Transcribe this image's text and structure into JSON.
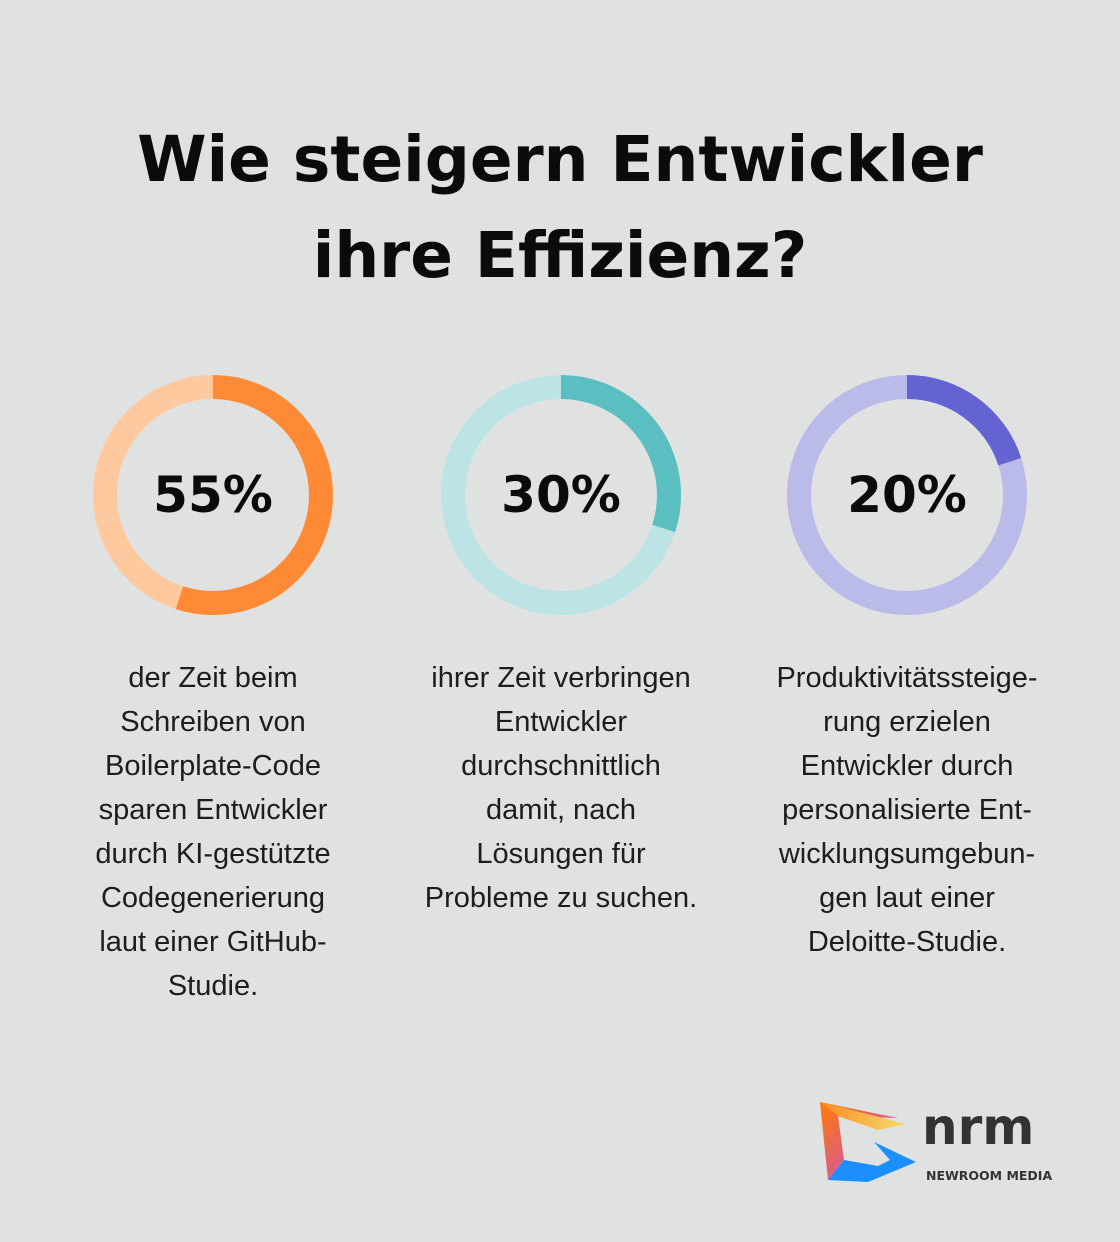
{
  "title": [
    "Wie steigern Entwickler",
    "ihre Effizienz?"
  ],
  "chart_data": [
    {
      "type": "pie",
      "variant": "donut",
      "label": "55%",
      "value": 55,
      "max": 100,
      "colors": {
        "fill": "#ff8a35",
        "track": "#ffc9a0"
      },
      "description": [
        "der Zeit beim",
        "Schreiben von",
        "Boilerplate-Code",
        "sparen Entwickler",
        "durch KI-gestützte",
        "Codegenerierung",
        "laut einer GitHub-",
        "Studie."
      ]
    },
    {
      "type": "pie",
      "variant": "donut",
      "label": "30%",
      "value": 30,
      "max": 100,
      "colors": {
        "fill": "#5bbfc1",
        "track": "#bde4e5"
      },
      "description": [
        "ihrer Zeit verbringen",
        "Entwickler",
        "durchschnittlich",
        "damit, nach",
        "Lösungen für",
        "Probleme zu suchen."
      ]
    },
    {
      "type": "pie",
      "variant": "donut",
      "label": "20%",
      "value": 20,
      "max": 100,
      "colors": {
        "fill": "#6363d1",
        "track": "#babbe8"
      },
      "description": [
        "Produktivitätssteige-",
        "rung erzielen",
        "Entwickler durch",
        "personalisierte Ent-",
        "wicklungsumgebun-",
        "gen laut einer",
        "Deloitte-Studie."
      ]
    }
  ],
  "logo": {
    "name": "nrm",
    "tagline": "NEWROOM MEDIA"
  }
}
